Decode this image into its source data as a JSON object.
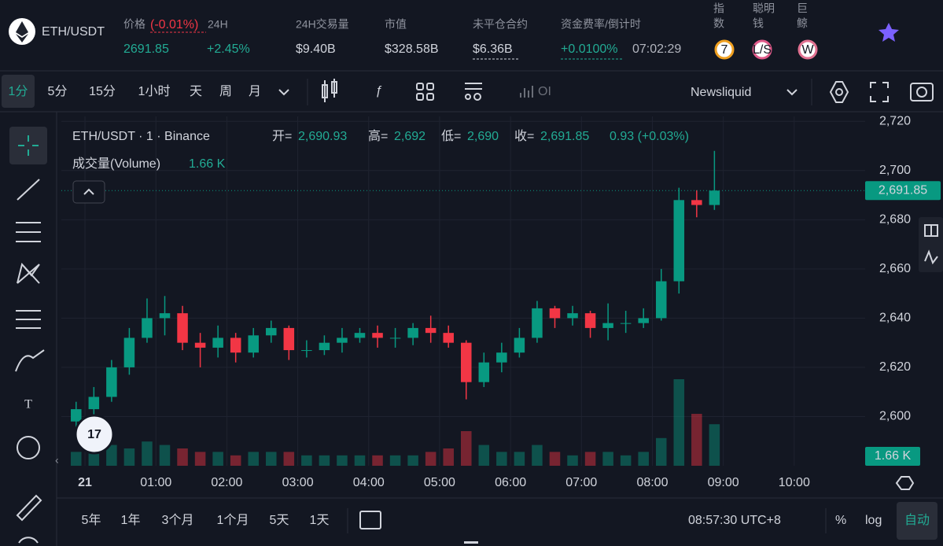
{
  "header": {
    "symbol": "ETH/USDT",
    "price_label": "价格",
    "price_change_small": "(-0.01%)",
    "h24_label": "24H",
    "price": "2691.85",
    "change_24h": "+2.45%",
    "volume_label": "24H交易量",
    "volume": "$9.40B",
    "mcap_label": "市值",
    "mcap": "$328.58B",
    "oi_label": "未平仓合约",
    "oi": "$6.36B",
    "funding_label": "资金费率/倒计时",
    "funding": "+0.0100%",
    "countdown": "07:02:29",
    "index_label": [
      "指",
      "数"
    ],
    "index_badge": "7",
    "smart_label": [
      "聪明",
      "钱"
    ],
    "smart_badge": "L/S",
    "whale_label": [
      "巨",
      "鲸"
    ],
    "whale_badge": "W"
  },
  "toolbar": {
    "intervals": [
      "1分",
      "5分",
      "15分",
      "1小时",
      "天",
      "周",
      "月"
    ],
    "oi": "OI",
    "source": "Newsliquid"
  },
  "legend": {
    "title": "ETH/USDT · 1 · Binance",
    "open_label": "开=",
    "open": "2,690.93",
    "high_label": "高=",
    "high": "2,692",
    "low_label": "低=",
    "low": "2,690",
    "close_label": "收=",
    "close": "2,691.85",
    "change": "0.93 (+0.03%)",
    "volume_label": "成交量(Volume)",
    "volume": "1.66 K"
  },
  "chart_data": {
    "type": "candlestick",
    "x": [
      "23:45",
      "00:00",
      "00:15",
      "00:30",
      "00:45",
      "01:00",
      "01:15",
      "01:30",
      "01:45",
      "02:00",
      "02:15",
      "02:30",
      "02:45",
      "03:00",
      "03:15",
      "03:30",
      "03:45",
      "04:00",
      "04:15",
      "04:30",
      "04:45",
      "05:00",
      "05:15",
      "05:30",
      "05:45",
      "06:00",
      "06:15",
      "06:30",
      "06:45",
      "07:00",
      "07:15",
      "07:30",
      "07:45",
      "08:00",
      "08:15",
      "08:30",
      "08:45"
    ],
    "open": [
      2598,
      2603,
      2608,
      2620,
      2632,
      2640,
      2642,
      2630,
      2628,
      2632,
      2626,
      2633,
      2636,
      2627,
      2627,
      2630,
      2632,
      2634,
      2632,
      2632,
      2636,
      2634,
      2630,
      2614,
      2622,
      2626,
      2632,
      2644,
      2640,
      2642,
      2636,
      2638,
      2638,
      2640,
      2655,
      2688,
      2686
    ],
    "high": [
      2606,
      2612,
      2623,
      2636,
      2648,
      2649,
      2645,
      2634,
      2637,
      2634,
      2636,
      2639,
      2637,
      2631,
      2633,
      2636,
      2636,
      2637,
      2636,
      2638,
      2641,
      2637,
      2631,
      2626,
      2630,
      2636,
      2647,
      2645,
      2645,
      2643,
      2646,
      2643,
      2644,
      2660,
      2693,
      2692,
      2708
    ],
    "low": [
      2594,
      2600,
      2606,
      2617,
      2630,
      2633,
      2627,
      2620,
      2624,
      2622,
      2624,
      2630,
      2623,
      2624,
      2625,
      2626,
      2630,
      2628,
      2628,
      2629,
      2630,
      2628,
      2607,
      2612,
      2618,
      2624,
      2630,
      2636,
      2637,
      2632,
      2631,
      2634,
      2636,
      2639,
      2650,
      2681,
      2684
    ],
    "close": [
      2603,
      2608,
      2620,
      2632,
      2640,
      2642,
      2630,
      2628,
      2632,
      2626,
      2633,
      2636,
      2627,
      2627,
      2630,
      2632,
      2634,
      2632,
      2632,
      2636,
      2634,
      2630,
      2614,
      2622,
      2626,
      2632,
      2644,
      2640,
      2642,
      2636,
      2638,
      2638,
      2640,
      2655,
      2688,
      2686,
      2691.85
    ],
    "volume": [
      4,
      5,
      6,
      5,
      7,
      6,
      5,
      4,
      4,
      3,
      4,
      4,
      4,
      3,
      3,
      3,
      3,
      3,
      3,
      3,
      4,
      5,
      10,
      6,
      4,
      4,
      6,
      4,
      3,
      4,
      4,
      3,
      4,
      8,
      25,
      15,
      12
    ],
    "up_color": "#089981",
    "down_color": "#f23645",
    "ylim": [
      2580,
      2722
    ],
    "yticks": [
      {
        "value": 2600,
        "label": "2,600"
      },
      {
        "value": 2620,
        "label": "2,620"
      },
      {
        "value": 2640,
        "label": "2,640"
      },
      {
        "value": 2660,
        "label": "2,660"
      },
      {
        "value": 2680,
        "label": "2,680"
      },
      {
        "value": 2700,
        "label": "2,700"
      },
      {
        "value": 2720,
        "label": "2,720"
      }
    ],
    "xlim": [
      "23:40",
      "11:00"
    ],
    "xticks": [
      {
        "value": "00:00",
        "label": "21"
      },
      "01:00",
      "02:00",
      "03:00",
      "04:00",
      "05:00",
      "06:00",
      "07:00",
      "08:00",
      "09:00",
      "10:00"
    ],
    "last_price": {
      "value": 2691.85,
      "label": "2,691.85"
    },
    "last_volume": "1.66 K",
    "grid": true
  },
  "bottom": {
    "ranges": [
      "5年",
      "1年",
      "3个月",
      "1个月",
      "5天",
      "1天"
    ],
    "clock": "08:57:30 UTC+8",
    "percent": "%",
    "log": "log",
    "auto": "自动"
  }
}
